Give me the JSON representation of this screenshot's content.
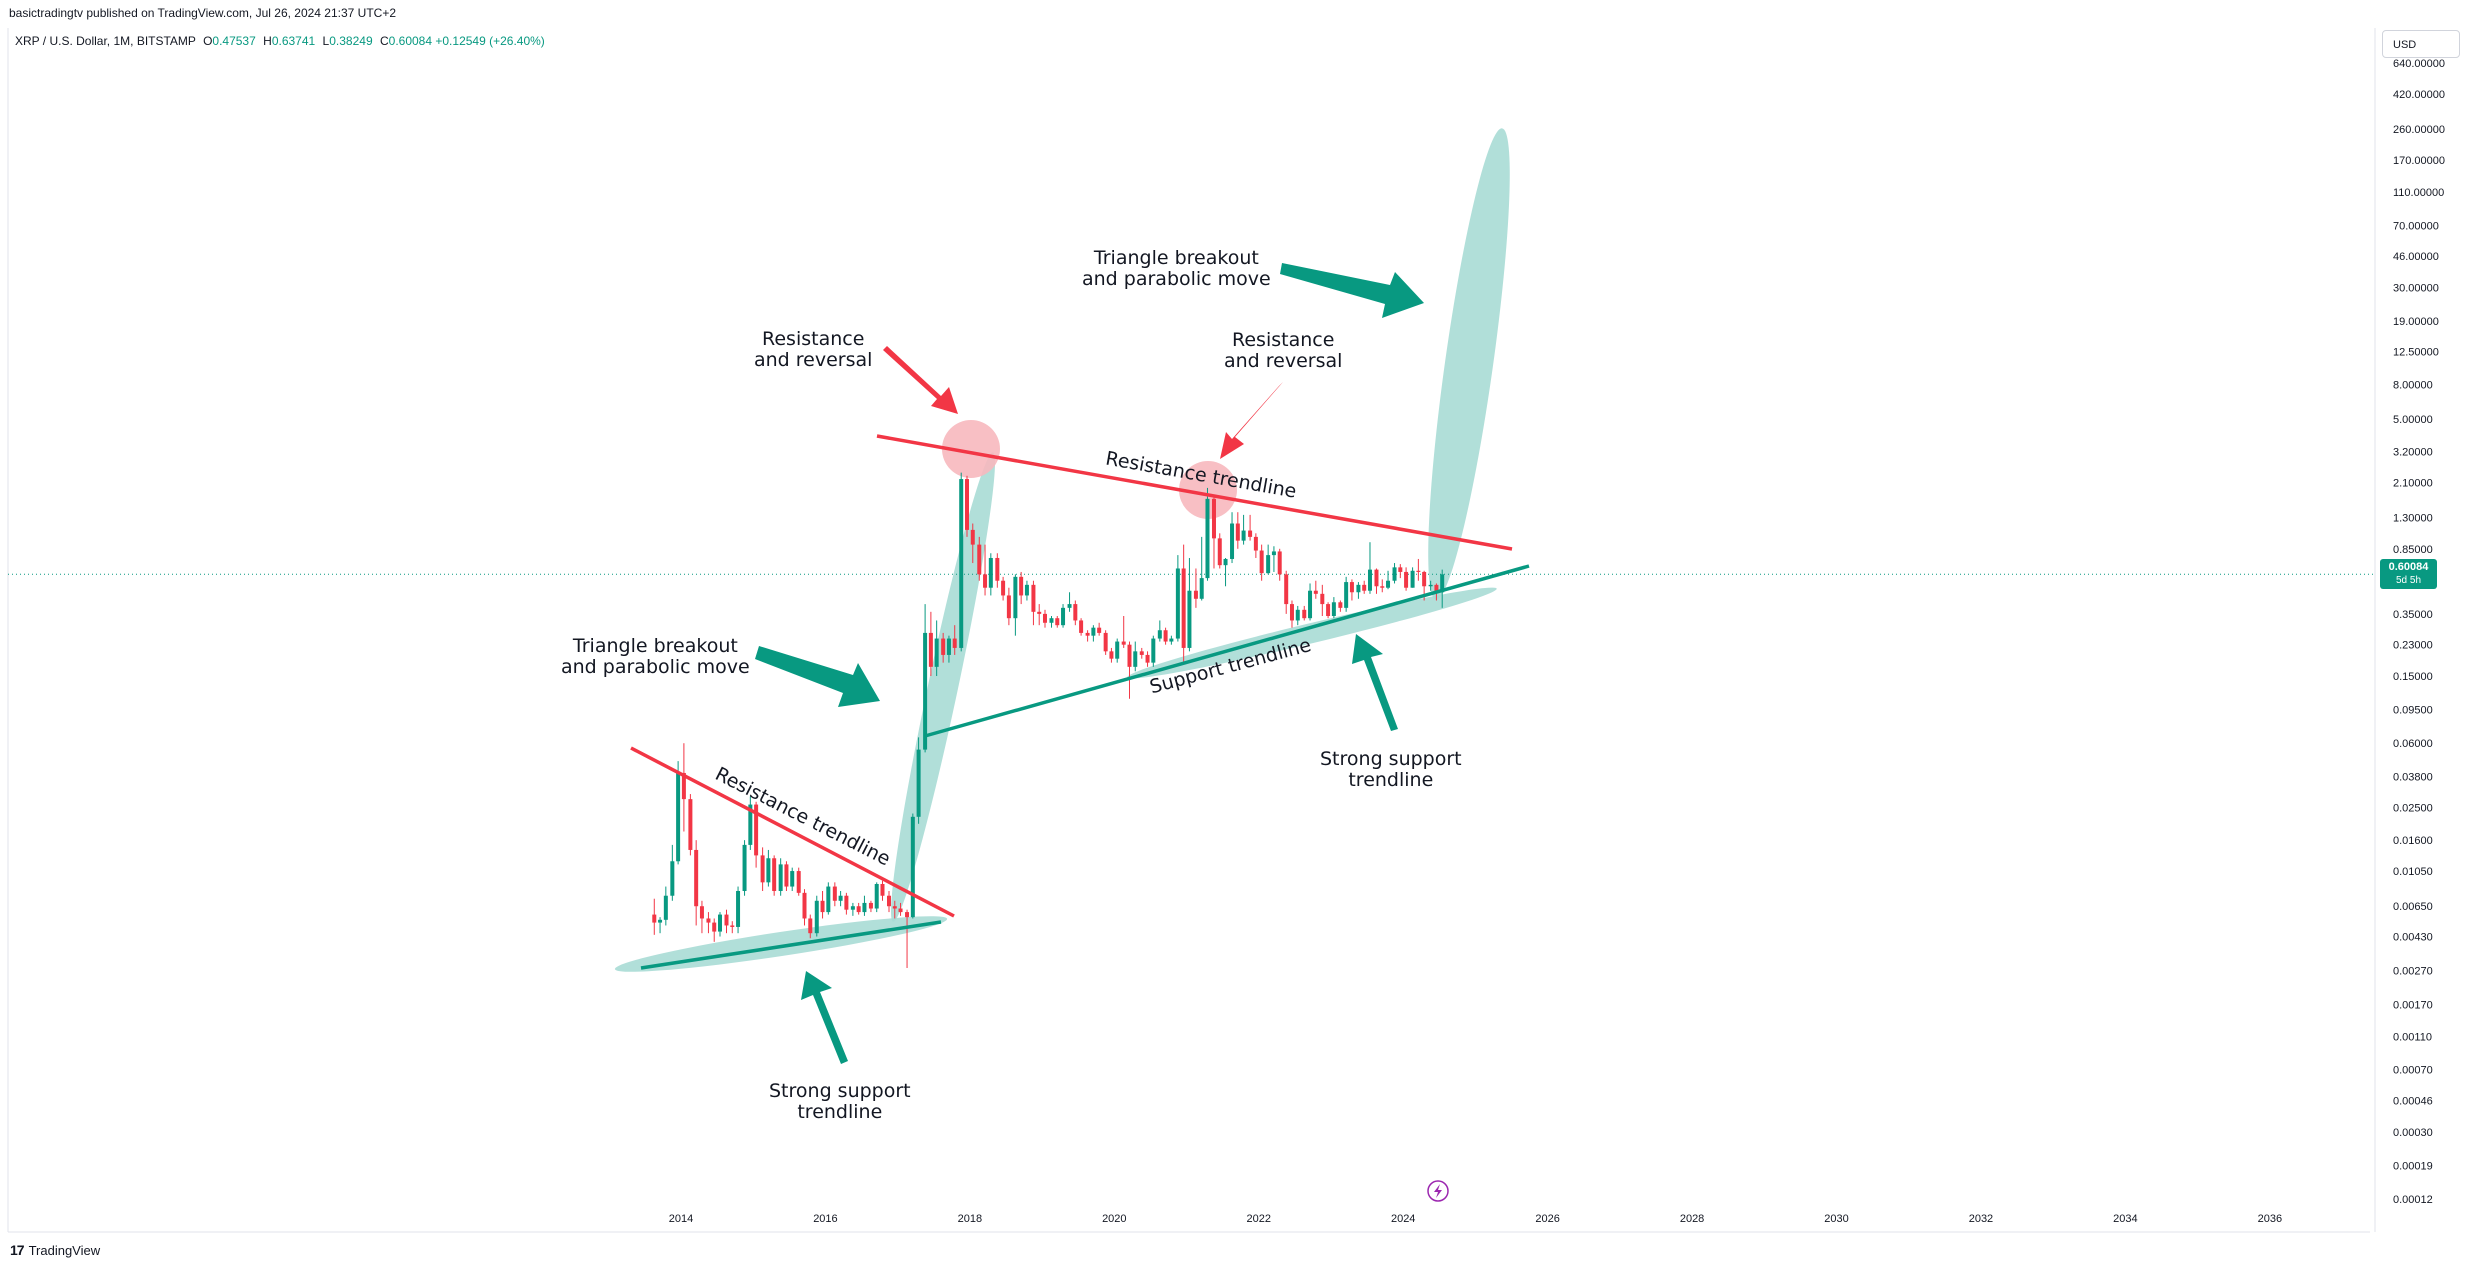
{
  "header": {
    "publisher_text": "basictradingtv published on TradingView.com, Jul 26, 2024 21:37 UTC+2",
    "symbol_text": "XRP / U.S. Dollar, 1M, BITSTAMP",
    "ohlc": {
      "open_label": "O",
      "open": "0.47537",
      "high_label": "H",
      "high": "0.63741",
      "low_label": "L",
      "low": "0.38249",
      "close_label": "C",
      "close": "0.60084",
      "change": "+0.12549 (+26.40%)"
    }
  },
  "price_axis": {
    "currency_button": "USD",
    "current_price": "0.60084",
    "countdown": "5d 5h"
  },
  "footer": {
    "logo_mark": "17",
    "logo_text": "TradingView"
  },
  "colors": {
    "up": "#089981",
    "down": "#f23645",
    "resistance": "#f23645",
    "support": "#089981",
    "highlight_green": "#a8dcd5",
    "highlight_red": "#f7b8be"
  },
  "icons": {
    "flash": "lightning-icon"
  },
  "annotations": {
    "breakout_top": "Triangle breakout\nand parabolic move",
    "resistance_left": "Resistance\nand reversal",
    "resistance_right": "Resistance\nand reversal",
    "breakout_mid": "Triangle breakout\nand parabolic move",
    "strong_support_right": "Strong support\ntrendline",
    "strong_support_left": "Strong support\ntrendline",
    "resistance_trendline_big": "Resistance trendline",
    "support_trendline_big": "Support trendline",
    "resistance_trendline_small": "Resistance trendline"
  },
  "chart_data": {
    "type": "candlestick",
    "scale": "log",
    "x_ticks": [
      "2014",
      "2016",
      "2018",
      "2020",
      "2022",
      "2024",
      "2026",
      "2028",
      "2030",
      "2032",
      "2034",
      "2036"
    ],
    "y_ticks": [
      "640.00000",
      "420.00000",
      "260.00000",
      "170.00000",
      "110.00000",
      "70.00000",
      "46.00000",
      "30.00000",
      "19.00000",
      "12.50000",
      "8.00000",
      "5.00000",
      "3.20000",
      "2.10000",
      "1.30000",
      "0.85000",
      "0.35000",
      "0.23000",
      "0.15000",
      "0.09500",
      "0.06000",
      "0.03800",
      "0.02500",
      "0.01600",
      "0.01050",
      "0.00650",
      "0.00430",
      "0.00270",
      "0.00170",
      "0.00110",
      "0.00070",
      "0.00046",
      "0.00030",
      "0.00019",
      "0.00012"
    ],
    "ylim": [
      0.00012,
      640
    ],
    "current_price": 0.60084,
    "candles": [
      {
        "t": 2013.63,
        "o": 0.0058,
        "h": 0.0072,
        "l": 0.0044,
        "c": 0.0052
      },
      {
        "t": 2013.71,
        "o": 0.0052,
        "h": 0.0056,
        "l": 0.0045,
        "c": 0.0054
      },
      {
        "t": 2013.79,
        "o": 0.0054,
        "h": 0.0085,
        "l": 0.005,
        "c": 0.0075
      },
      {
        "t": 2013.88,
        "o": 0.0075,
        "h": 0.015,
        "l": 0.007,
        "c": 0.012
      },
      {
        "t": 2013.96,
        "o": 0.012,
        "h": 0.047,
        "l": 0.0115,
        "c": 0.04
      },
      {
        "t": 2014.04,
        "o": 0.04,
        "h": 0.06,
        "l": 0.018,
        "c": 0.028
      },
      {
        "t": 2014.13,
        "o": 0.028,
        "h": 0.03,
        "l": 0.013,
        "c": 0.014
      },
      {
        "t": 2014.21,
        "o": 0.014,
        "h": 0.016,
        "l": 0.005,
        "c": 0.0065
      },
      {
        "t": 2014.29,
        "o": 0.0065,
        "h": 0.007,
        "l": 0.0045,
        "c": 0.0055
      },
      {
        "t": 2014.38,
        "o": 0.0055,
        "h": 0.006,
        "l": 0.0045,
        "c": 0.0052
      },
      {
        "t": 2014.46,
        "o": 0.0052,
        "h": 0.0055,
        "l": 0.004,
        "c": 0.0046
      },
      {
        "t": 2014.54,
        "o": 0.0046,
        "h": 0.006,
        "l": 0.0043,
        "c": 0.0058
      },
      {
        "t": 2014.63,
        "o": 0.0058,
        "h": 0.0062,
        "l": 0.0045,
        "c": 0.005
      },
      {
        "t": 2014.71,
        "o": 0.005,
        "h": 0.0053,
        "l": 0.0045,
        "c": 0.0049
      },
      {
        "t": 2014.79,
        "o": 0.0049,
        "h": 0.0085,
        "l": 0.0045,
        "c": 0.008
      },
      {
        "t": 2014.88,
        "o": 0.008,
        "h": 0.016,
        "l": 0.0075,
        "c": 0.015
      },
      {
        "t": 2014.96,
        "o": 0.015,
        "h": 0.029,
        "l": 0.014,
        "c": 0.026
      },
      {
        "t": 2015.04,
        "o": 0.026,
        "h": 0.027,
        "l": 0.011,
        "c": 0.013
      },
      {
        "t": 2015.13,
        "o": 0.013,
        "h": 0.0145,
        "l": 0.008,
        "c": 0.009
      },
      {
        "t": 2015.21,
        "o": 0.009,
        "h": 0.014,
        "l": 0.0085,
        "c": 0.0125
      },
      {
        "t": 2015.29,
        "o": 0.0125,
        "h": 0.013,
        "l": 0.0075,
        "c": 0.008
      },
      {
        "t": 2015.38,
        "o": 0.008,
        "h": 0.0125,
        "l": 0.0075,
        "c": 0.0115
      },
      {
        "t": 2015.46,
        "o": 0.0115,
        "h": 0.012,
        "l": 0.008,
        "c": 0.0085
      },
      {
        "t": 2015.54,
        "o": 0.0085,
        "h": 0.011,
        "l": 0.008,
        "c": 0.0105
      },
      {
        "t": 2015.63,
        "o": 0.0105,
        "h": 0.011,
        "l": 0.0075,
        "c": 0.0078
      },
      {
        "t": 2015.71,
        "o": 0.0078,
        "h": 0.0082,
        "l": 0.005,
        "c": 0.0055
      },
      {
        "t": 2015.79,
        "o": 0.0055,
        "h": 0.0058,
        "l": 0.0042,
        "c": 0.0045
      },
      {
        "t": 2015.88,
        "o": 0.0045,
        "h": 0.0075,
        "l": 0.0043,
        "c": 0.007
      },
      {
        "t": 2015.96,
        "o": 0.007,
        "h": 0.008,
        "l": 0.0055,
        "c": 0.006
      },
      {
        "t": 2016.04,
        "o": 0.006,
        "h": 0.009,
        "l": 0.0058,
        "c": 0.0085
      },
      {
        "t": 2016.13,
        "o": 0.0085,
        "h": 0.009,
        "l": 0.0065,
        "c": 0.007
      },
      {
        "t": 2016.21,
        "o": 0.007,
        "h": 0.008,
        "l": 0.0065,
        "c": 0.0075
      },
      {
        "t": 2016.29,
        "o": 0.0075,
        "h": 0.0078,
        "l": 0.0058,
        "c": 0.0062
      },
      {
        "t": 2016.38,
        "o": 0.0062,
        "h": 0.0068,
        "l": 0.0057,
        "c": 0.0065
      },
      {
        "t": 2016.46,
        "o": 0.0065,
        "h": 0.0068,
        "l": 0.0058,
        "c": 0.006
      },
      {
        "t": 2016.54,
        "o": 0.006,
        "h": 0.0075,
        "l": 0.0057,
        "c": 0.0068
      },
      {
        "t": 2016.63,
        "o": 0.0068,
        "h": 0.007,
        "l": 0.006,
        "c": 0.0063
      },
      {
        "t": 2016.71,
        "o": 0.0063,
        "h": 0.009,
        "l": 0.006,
        "c": 0.0088
      },
      {
        "t": 2016.79,
        "o": 0.0088,
        "h": 0.0092,
        "l": 0.007,
        "c": 0.0075
      },
      {
        "t": 2016.88,
        "o": 0.0075,
        "h": 0.008,
        "l": 0.006,
        "c": 0.0065
      },
      {
        "t": 2016.96,
        "o": 0.0065,
        "h": 0.007,
        "l": 0.0055,
        "c": 0.0063
      },
      {
        "t": 2017.04,
        "o": 0.0063,
        "h": 0.0068,
        "l": 0.0057,
        "c": 0.006
      },
      {
        "t": 2017.13,
        "o": 0.006,
        "h": 0.0062,
        "l": 0.0028,
        "c": 0.0056
      },
      {
        "t": 2017.21,
        "o": 0.0056,
        "h": 0.023,
        "l": 0.0055,
        "c": 0.022
      },
      {
        "t": 2017.29,
        "o": 0.022,
        "h": 0.065,
        "l": 0.02,
        "c": 0.055
      },
      {
        "t": 2017.38,
        "o": 0.055,
        "h": 0.4,
        "l": 0.053,
        "c": 0.27
      },
      {
        "t": 2017.46,
        "o": 0.27,
        "h": 0.36,
        "l": 0.15,
        "c": 0.17
      },
      {
        "t": 2017.54,
        "o": 0.17,
        "h": 0.32,
        "l": 0.15,
        "c": 0.25
      },
      {
        "t": 2017.63,
        "o": 0.25,
        "h": 0.27,
        "l": 0.18,
        "c": 0.2
      },
      {
        "t": 2017.71,
        "o": 0.2,
        "h": 0.26,
        "l": 0.18,
        "c": 0.25
      },
      {
        "t": 2017.79,
        "o": 0.25,
        "h": 0.3,
        "l": 0.2,
        "c": 0.22
      },
      {
        "t": 2017.88,
        "o": 0.22,
        "h": 2.4,
        "l": 0.21,
        "c": 2.2
      },
      {
        "t": 2017.96,
        "o": 2.2,
        "h": 2.3,
        "l": 1.0,
        "c": 1.1
      },
      {
        "t": 2018.04,
        "o": 1.1,
        "h": 1.2,
        "l": 0.7,
        "c": 0.9
      },
      {
        "t": 2018.13,
        "o": 0.9,
        "h": 1.0,
        "l": 0.55,
        "c": 0.6
      },
      {
        "t": 2018.21,
        "o": 0.6,
        "h": 0.9,
        "l": 0.45,
        "c": 0.5
      },
      {
        "t": 2018.29,
        "o": 0.5,
        "h": 0.8,
        "l": 0.45,
        "c": 0.75
      },
      {
        "t": 2018.38,
        "o": 0.75,
        "h": 0.8,
        "l": 0.5,
        "c": 0.55
      },
      {
        "t": 2018.46,
        "o": 0.55,
        "h": 0.58,
        "l": 0.42,
        "c": 0.45
      },
      {
        "t": 2018.54,
        "o": 0.45,
        "h": 0.5,
        "l": 0.3,
        "c": 0.33
      },
      {
        "t": 2018.63,
        "o": 0.33,
        "h": 0.6,
        "l": 0.26,
        "c": 0.58
      },
      {
        "t": 2018.71,
        "o": 0.58,
        "h": 0.62,
        "l": 0.4,
        "c": 0.45
      },
      {
        "t": 2018.79,
        "o": 0.45,
        "h": 0.55,
        "l": 0.42,
        "c": 0.52
      },
      {
        "t": 2018.88,
        "o": 0.52,
        "h": 0.55,
        "l": 0.3,
        "c": 0.36
      },
      {
        "t": 2018.96,
        "o": 0.36,
        "h": 0.4,
        "l": 0.3,
        "c": 0.35
      },
      {
        "t": 2019.04,
        "o": 0.35,
        "h": 0.37,
        "l": 0.29,
        "c": 0.31
      },
      {
        "t": 2019.13,
        "o": 0.31,
        "h": 0.34,
        "l": 0.29,
        "c": 0.33
      },
      {
        "t": 2019.21,
        "o": 0.33,
        "h": 0.34,
        "l": 0.29,
        "c": 0.3
      },
      {
        "t": 2019.29,
        "o": 0.3,
        "h": 0.4,
        "l": 0.29,
        "c": 0.38
      },
      {
        "t": 2019.38,
        "o": 0.38,
        "h": 0.47,
        "l": 0.36,
        "c": 0.4
      },
      {
        "t": 2019.46,
        "o": 0.4,
        "h": 0.42,
        "l": 0.3,
        "c": 0.32
      },
      {
        "t": 2019.54,
        "o": 0.32,
        "h": 0.33,
        "l": 0.26,
        "c": 0.27
      },
      {
        "t": 2019.63,
        "o": 0.27,
        "h": 0.28,
        "l": 0.24,
        "c": 0.26
      },
      {
        "t": 2019.71,
        "o": 0.26,
        "h": 0.3,
        "l": 0.24,
        "c": 0.29
      },
      {
        "t": 2019.79,
        "o": 0.29,
        "h": 0.31,
        "l": 0.26,
        "c": 0.27
      },
      {
        "t": 2019.88,
        "o": 0.27,
        "h": 0.28,
        "l": 0.2,
        "c": 0.21
      },
      {
        "t": 2019.96,
        "o": 0.21,
        "h": 0.22,
        "l": 0.18,
        "c": 0.19
      },
      {
        "t": 2020.04,
        "o": 0.19,
        "h": 0.25,
        "l": 0.18,
        "c": 0.24
      },
      {
        "t": 2020.13,
        "o": 0.24,
        "h": 0.34,
        "l": 0.22,
        "c": 0.23
      },
      {
        "t": 2020.21,
        "o": 0.23,
        "h": 0.24,
        "l": 0.11,
        "c": 0.17
      },
      {
        "t": 2020.29,
        "o": 0.17,
        "h": 0.24,
        "l": 0.16,
        "c": 0.21
      },
      {
        "t": 2020.38,
        "o": 0.21,
        "h": 0.22,
        "l": 0.19,
        "c": 0.2
      },
      {
        "t": 2020.46,
        "o": 0.2,
        "h": 0.21,
        "l": 0.17,
        "c": 0.18
      },
      {
        "t": 2020.54,
        "o": 0.18,
        "h": 0.26,
        "l": 0.17,
        "c": 0.25
      },
      {
        "t": 2020.63,
        "o": 0.25,
        "h": 0.32,
        "l": 0.24,
        "c": 0.28
      },
      {
        "t": 2020.71,
        "o": 0.28,
        "h": 0.29,
        "l": 0.23,
        "c": 0.24
      },
      {
        "t": 2020.79,
        "o": 0.24,
        "h": 0.26,
        "l": 0.23,
        "c": 0.25
      },
      {
        "t": 2020.88,
        "o": 0.25,
        "h": 0.78,
        "l": 0.24,
        "c": 0.65
      },
      {
        "t": 2020.96,
        "o": 0.65,
        "h": 0.9,
        "l": 0.18,
        "c": 0.22
      },
      {
        "t": 2021.04,
        "o": 0.22,
        "h": 0.75,
        "l": 0.21,
        "c": 0.48
      },
      {
        "t": 2021.13,
        "o": 0.48,
        "h": 0.65,
        "l": 0.38,
        "c": 0.43
      },
      {
        "t": 2021.21,
        "o": 0.43,
        "h": 1.0,
        "l": 0.42,
        "c": 0.57
      },
      {
        "t": 2021.29,
        "o": 0.57,
        "h": 1.95,
        "l": 0.55,
        "c": 1.68
      },
      {
        "t": 2021.38,
        "o": 1.68,
        "h": 1.75,
        "l": 0.65,
        "c": 0.98
      },
      {
        "t": 2021.46,
        "o": 0.98,
        "h": 1.05,
        "l": 0.65,
        "c": 0.68
      },
      {
        "t": 2021.54,
        "o": 0.68,
        "h": 0.75,
        "l": 0.51,
        "c": 0.74
      },
      {
        "t": 2021.63,
        "o": 0.74,
        "h": 1.4,
        "l": 0.7,
        "c": 1.2
      },
      {
        "t": 2021.71,
        "o": 1.2,
        "h": 1.4,
        "l": 0.85,
        "c": 0.95
      },
      {
        "t": 2021.79,
        "o": 0.95,
        "h": 1.35,
        "l": 0.9,
        "c": 1.09
      },
      {
        "t": 2021.88,
        "o": 1.09,
        "h": 1.35,
        "l": 0.95,
        "c": 1.0
      },
      {
        "t": 2021.96,
        "o": 1.0,
        "h": 1.05,
        "l": 0.75,
        "c": 0.83
      },
      {
        "t": 2022.04,
        "o": 0.83,
        "h": 0.9,
        "l": 0.55,
        "c": 0.61
      },
      {
        "t": 2022.13,
        "o": 0.61,
        "h": 0.9,
        "l": 0.6,
        "c": 0.78
      },
      {
        "t": 2022.21,
        "o": 0.78,
        "h": 0.88,
        "l": 0.62,
        "c": 0.82
      },
      {
        "t": 2022.29,
        "o": 0.82,
        "h": 0.85,
        "l": 0.55,
        "c": 0.6
      },
      {
        "t": 2022.38,
        "o": 0.6,
        "h": 0.63,
        "l": 0.35,
        "c": 0.4
      },
      {
        "t": 2022.46,
        "o": 0.4,
        "h": 0.42,
        "l": 0.29,
        "c": 0.32
      },
      {
        "t": 2022.54,
        "o": 0.32,
        "h": 0.39,
        "l": 0.3,
        "c": 0.37
      },
      {
        "t": 2022.63,
        "o": 0.37,
        "h": 0.39,
        "l": 0.32,
        "c": 0.33
      },
      {
        "t": 2022.71,
        "o": 0.33,
        "h": 0.53,
        "l": 0.32,
        "c": 0.48
      },
      {
        "t": 2022.79,
        "o": 0.48,
        "h": 0.55,
        "l": 0.43,
        "c": 0.46
      },
      {
        "t": 2022.88,
        "o": 0.46,
        "h": 0.52,
        "l": 0.34,
        "c": 0.4
      },
      {
        "t": 2022.96,
        "o": 0.4,
        "h": 0.41,
        "l": 0.33,
        "c": 0.34
      },
      {
        "t": 2023.04,
        "o": 0.34,
        "h": 0.44,
        "l": 0.33,
        "c": 0.41
      },
      {
        "t": 2023.13,
        "o": 0.41,
        "h": 0.42,
        "l": 0.36,
        "c": 0.38
      },
      {
        "t": 2023.21,
        "o": 0.38,
        "h": 0.58,
        "l": 0.36,
        "c": 0.54
      },
      {
        "t": 2023.29,
        "o": 0.54,
        "h": 0.56,
        "l": 0.42,
        "c": 0.47
      },
      {
        "t": 2023.38,
        "o": 0.47,
        "h": 0.54,
        "l": 0.43,
        "c": 0.52
      },
      {
        "t": 2023.46,
        "o": 0.52,
        "h": 0.55,
        "l": 0.46,
        "c": 0.48
      },
      {
        "t": 2023.54,
        "o": 0.48,
        "h": 0.93,
        "l": 0.46,
        "c": 0.64
      },
      {
        "t": 2023.63,
        "o": 0.64,
        "h": 0.65,
        "l": 0.46,
        "c": 0.51
      },
      {
        "t": 2023.71,
        "o": 0.51,
        "h": 0.56,
        "l": 0.47,
        "c": 0.5
      },
      {
        "t": 2023.79,
        "o": 0.5,
        "h": 0.63,
        "l": 0.49,
        "c": 0.55
      },
      {
        "t": 2023.88,
        "o": 0.55,
        "h": 0.7,
        "l": 0.53,
        "c": 0.66
      },
      {
        "t": 2023.96,
        "o": 0.66,
        "h": 0.69,
        "l": 0.57,
        "c": 0.62
      },
      {
        "t": 2024.04,
        "o": 0.62,
        "h": 0.66,
        "l": 0.48,
        "c": 0.5
      },
      {
        "t": 2024.13,
        "o": 0.5,
        "h": 0.66,
        "l": 0.5,
        "c": 0.63
      },
      {
        "t": 2024.21,
        "o": 0.63,
        "h": 0.74,
        "l": 0.55,
        "c": 0.62
      },
      {
        "t": 2024.29,
        "o": 0.62,
        "h": 0.63,
        "l": 0.42,
        "c": 0.51
      },
      {
        "t": 2024.38,
        "o": 0.51,
        "h": 0.55,
        "l": 0.48,
        "c": 0.52
      },
      {
        "t": 2024.46,
        "o": 0.52,
        "h": 0.53,
        "l": 0.42,
        "c": 0.47
      },
      {
        "t": 2024.54,
        "o": 0.47,
        "h": 0.64,
        "l": 0.38,
        "c": 0.6
      }
    ]
  }
}
